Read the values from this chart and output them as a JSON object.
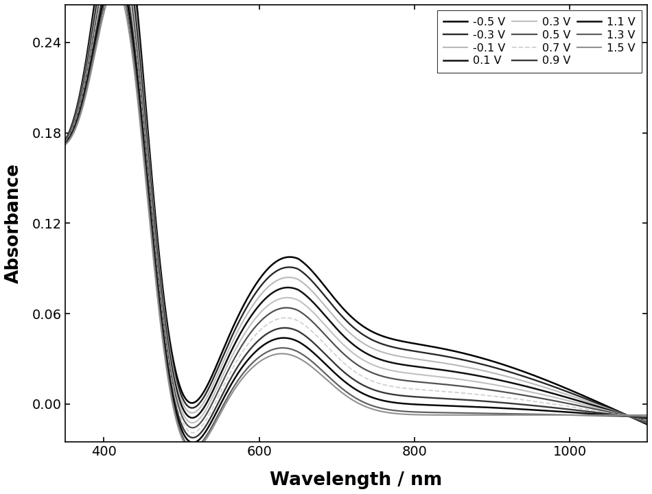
{
  "voltages": [
    "-0.5 V",
    "-0.3 V",
    "-0.1 V",
    "0.1 V",
    "0.3 V",
    "0.5 V",
    "0.7 V",
    "0.9 V",
    "1.1 V",
    "1.3 V",
    "1.5 V"
  ],
  "voltage_vals": [
    -0.5,
    -0.3,
    -0.1,
    0.1,
    0.3,
    0.5,
    0.7,
    0.9,
    1.1,
    1.3,
    1.5
  ],
  "colors": [
    "#000000",
    "#282828",
    "#b8b8b8",
    "#101010",
    "#c0c0c0",
    "#505050",
    "#d0d0d0",
    "#383838",
    "#080808",
    "#606060",
    "#909090"
  ],
  "linestyles": [
    "-",
    "-",
    "-",
    "-",
    "-",
    "-",
    "--",
    "-",
    "-",
    "-",
    "-"
  ],
  "linewidths": [
    1.8,
    1.7,
    1.5,
    1.8,
    1.5,
    1.6,
    1.3,
    1.7,
    1.8,
    1.6,
    1.5
  ],
  "xlabel": "Wavelength / nm",
  "ylabel": "Absorbance",
  "xlim": [
    350,
    1100
  ],
  "ylim": [
    -0.025,
    0.265
  ],
  "yticks": [
    0.0,
    0.06,
    0.12,
    0.18,
    0.24
  ],
  "xticks": [
    400,
    600,
    800,
    1000
  ],
  "figsize": [
    9.5,
    7.2
  ],
  "dpi": 100,
  "legend_ncol": 3,
  "legend_fontsize": 11.5
}
